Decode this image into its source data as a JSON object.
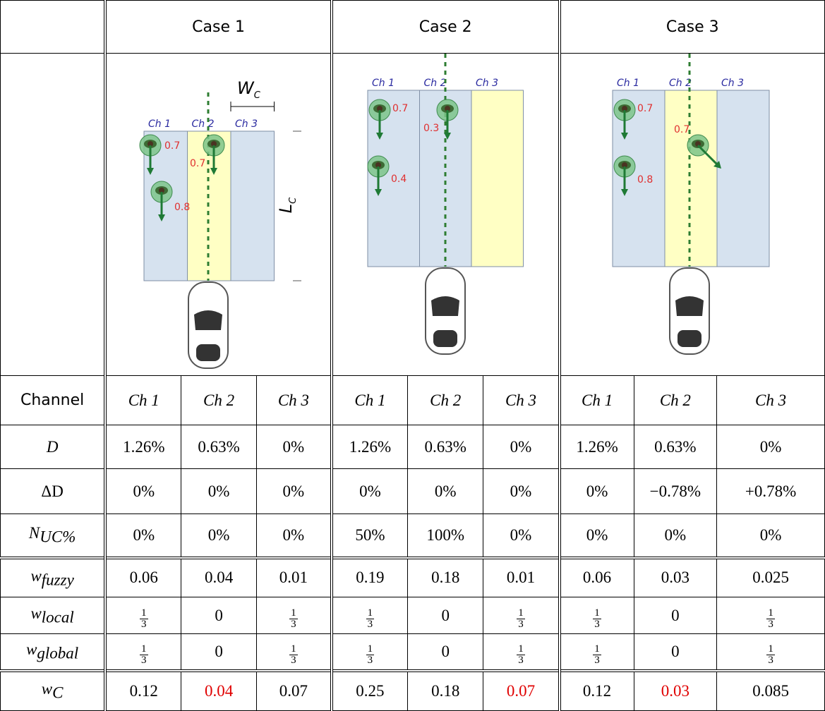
{
  "header": {
    "cases": [
      "Case 1",
      "Case 2",
      "Case 3"
    ]
  },
  "diagrams": [
    {
      "channels": [
        "Ch 1",
        "Ch 2",
        "Ch 3"
      ],
      "probabilities": [
        "0.7",
        "0.7",
        "0.8"
      ],
      "width_label": {
        "base": "W",
        "sub": "C"
      },
      "length_label": {
        "base": "L",
        "sub": "C"
      }
    },
    {
      "channels": [
        "Ch 1",
        "Ch 2",
        "Ch 3"
      ],
      "probabilities": [
        "0.7",
        "0.3",
        "0.4"
      ]
    },
    {
      "channels": [
        "Ch 1",
        "Ch 2",
        "Ch 3"
      ],
      "probabilities": [
        "0.7",
        "0.7",
        "0.8"
      ]
    }
  ],
  "table": {
    "rows": [
      {
        "label": {
          "base": "Channel"
        },
        "italic": true,
        "cells": [
          "Ch 1",
          "Ch 2",
          "Ch 3",
          "Ch 1",
          "Ch 2",
          "Ch 3",
          "Ch 1",
          "Ch 2",
          "Ch 3"
        ]
      },
      {
        "label": {
          "base": "D"
        },
        "cells": [
          "1.26%",
          "0.63%",
          "0%",
          "1.26%",
          "0.63%",
          "0%",
          "1.26%",
          "0.63%",
          "0%"
        ]
      },
      {
        "label": {
          "base": "ΔD"
        },
        "cells": [
          "0%",
          "0%",
          "0%",
          "0%",
          "0%",
          "0%",
          "0%",
          "−0.78%",
          "+0.78%"
        ]
      },
      {
        "label": {
          "base": "N",
          "sub": "UC%"
        },
        "cells": [
          "0%",
          "0%",
          "0%",
          "50%",
          "100%",
          "0%",
          "0%",
          "0%",
          "0%"
        ]
      },
      {
        "label": {
          "base": "w",
          "sub": "fuzzy"
        },
        "cells": [
          "0.06",
          "0.04",
          "0.01",
          "0.19",
          "0.18",
          "0.01",
          "0.06",
          "0.03",
          "0.025"
        ]
      },
      {
        "label": {
          "base": "w",
          "sub": "local"
        },
        "cells": [
          {
            "numerator": "1",
            "denominator": "3"
          },
          "0",
          {
            "numerator": "1",
            "denominator": "3"
          },
          {
            "numerator": "1",
            "denominator": "3"
          },
          "0",
          {
            "numerator": "1",
            "denominator": "3"
          },
          {
            "numerator": "1",
            "denominator": "3"
          },
          "0",
          {
            "numerator": "1",
            "denominator": "3"
          }
        ]
      },
      {
        "label": {
          "base": "w",
          "sub": "global"
        },
        "cells": [
          {
            "numerator": "1",
            "denominator": "3"
          },
          "0",
          {
            "numerator": "1",
            "denominator": "3"
          },
          {
            "numerator": "1",
            "denominator": "3"
          },
          "0",
          {
            "numerator": "1",
            "denominator": "3"
          },
          {
            "numerator": "1",
            "denominator": "3"
          },
          "0",
          {
            "numerator": "1",
            "denominator": "3"
          }
        ]
      },
      {
        "label": {
          "base": "w",
          "sub": "C"
        },
        "cells": [
          "0.12",
          {
            "text": "0.04",
            "color": "#e00000"
          },
          "0.07",
          "0.25",
          "0.18",
          {
            "text": "0.07",
            "color": "#e00000"
          },
          "0.12",
          {
            "text": "0.03",
            "color": "#e00000"
          },
          "0.085"
        ]
      }
    ]
  }
}
